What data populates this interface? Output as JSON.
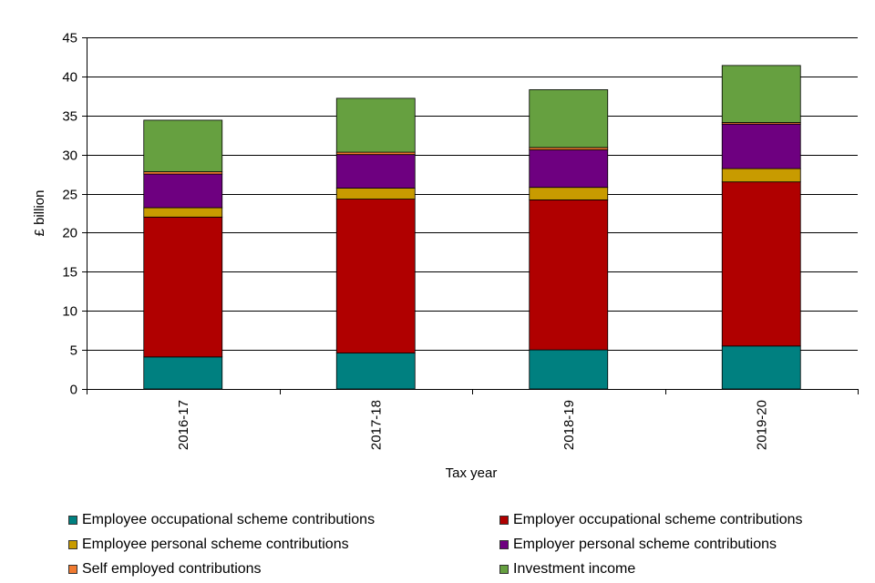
{
  "chart_data": {
    "type": "bar",
    "stacked": true,
    "categories": [
      "2016-17",
      "2017-18",
      "2018-19",
      "2019-20"
    ],
    "series": [
      {
        "name": "Employee occupational scheme contributions",
        "color": "#008080",
        "values": [
          4.1,
          4.6,
          5.0,
          5.5
        ]
      },
      {
        "name": "Employer occupational scheme contributions",
        "color": "#B00000",
        "values": [
          17.9,
          19.7,
          19.2,
          21.0
        ]
      },
      {
        "name": "Employee personal scheme contributions",
        "color": "#C89B00",
        "values": [
          1.2,
          1.4,
          1.6,
          1.7
        ]
      },
      {
        "name": "Employer personal scheme contributions",
        "color": "#6E0080",
        "values": [
          4.3,
          4.3,
          4.8,
          5.7
        ]
      },
      {
        "name": "Self employed contributions",
        "color": "#F07A30",
        "values": [
          0.3,
          0.3,
          0.3,
          0.2
        ]
      },
      {
        "name": "Investment income",
        "color": "#66A040",
        "values": [
          6.6,
          6.9,
          7.4,
          7.3
        ]
      }
    ],
    "xlabel": "Tax year",
    "ylabel": "£ billion",
    "ylim": [
      0,
      45
    ],
    "yticks": [
      0,
      5,
      10,
      15,
      20,
      25,
      30,
      35,
      40,
      45
    ],
    "grid": true,
    "legend_position": "bottom"
  }
}
